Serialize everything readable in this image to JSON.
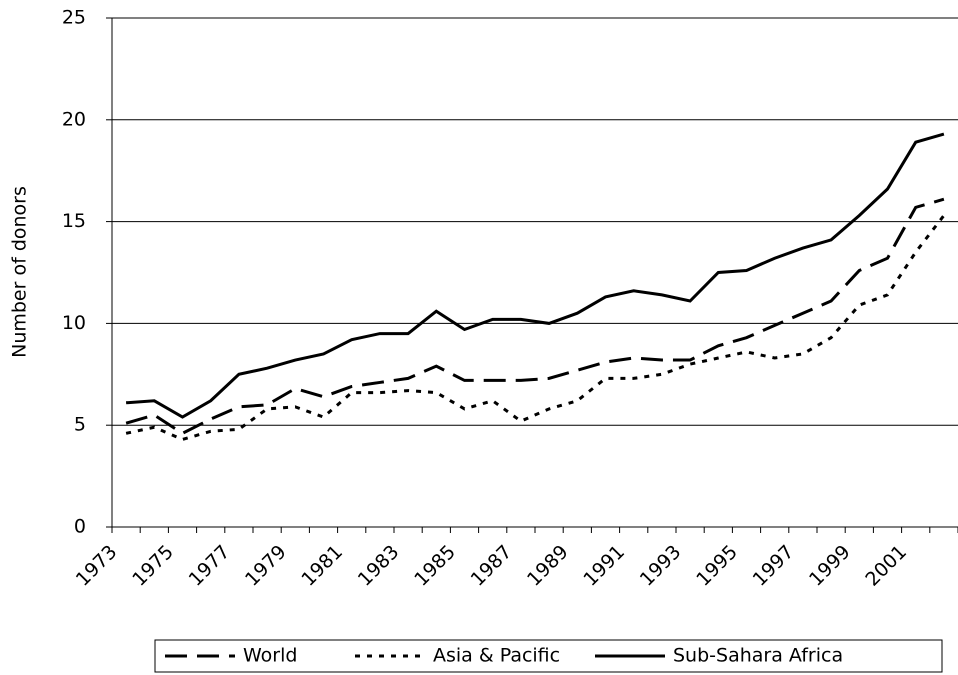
{
  "chart_data": {
    "type": "line",
    "y_label": "Number of donors",
    "categories": [
      "1973",
      null,
      "1975",
      null,
      "1977",
      null,
      "1979",
      null,
      "1981",
      null,
      "1983",
      null,
      "1985",
      null,
      "1987",
      null,
      "1989",
      null,
      "1991",
      null,
      "1993",
      null,
      "1995",
      null,
      "1997",
      null,
      "1999",
      null,
      "2001",
      null
    ],
    "series": [
      {
        "name": "World",
        "color": "#000000",
        "dash": "long",
        "values": [
          5.1,
          5.5,
          4.6,
          5.3,
          5.9,
          6.0,
          6.8,
          6.4,
          6.9,
          7.1,
          7.3,
          7.9,
          7.2,
          7.2,
          7.2,
          7.3,
          7.7,
          8.1,
          8.3,
          8.2,
          8.2,
          8.9,
          9.3,
          9.9,
          10.5,
          11.1,
          12.6,
          13.2,
          15.7,
          16.1
        ]
      },
      {
        "name": "Asia & Pacific",
        "color": "#000000",
        "dash": "short",
        "values": [
          4.6,
          4.9,
          4.3,
          4.7,
          4.8,
          5.8,
          5.9,
          5.4,
          6.6,
          6.6,
          6.7,
          6.6,
          5.8,
          6.2,
          5.2,
          5.8,
          6.2,
          7.3,
          7.3,
          7.5,
          8.0,
          8.3,
          8.6,
          8.3,
          8.5,
          9.3,
          10.9,
          11.4,
          13.5,
          15.3
        ]
      },
      {
        "name": "Sub-Sahara Africa",
        "color": "#000000",
        "dash": "solid",
        "values": [
          6.1,
          6.2,
          5.4,
          6.2,
          7.5,
          7.8,
          8.2,
          8.5,
          9.2,
          9.5,
          9.5,
          10.6,
          9.7,
          10.2,
          10.2,
          10.0,
          10.5,
          11.3,
          11.6,
          11.4,
          11.1,
          12.5,
          12.6,
          13.2,
          13.7,
          14.1,
          15.3,
          16.6,
          18.9,
          19.3
        ]
      }
    ],
    "ylim": [
      0,
      25
    ],
    "yticks": [
      0,
      5,
      10,
      15,
      20,
      25
    ],
    "grid": true,
    "legend": "bottom"
  }
}
